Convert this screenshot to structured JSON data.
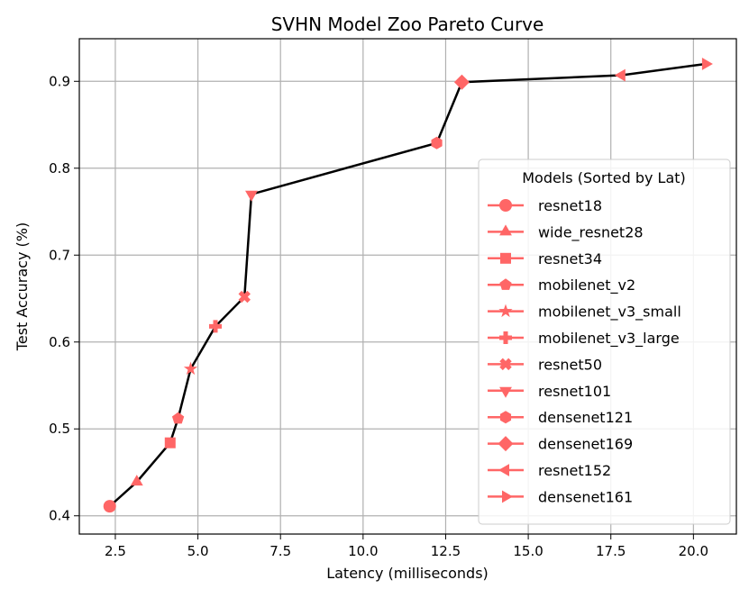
{
  "chart_data": {
    "type": "line",
    "title": "SVHN Model Zoo Pareto Curve",
    "xlabel": "Latency (milliseconds)",
    "ylabel": "Test Accuracy (%)",
    "xlim": [
      1.41,
      21.3
    ],
    "ylim": [
      0.379,
      0.949
    ],
    "xticks": [
      2.5,
      5.0,
      7.5,
      10.0,
      12.5,
      15.0,
      17.5,
      20.0
    ],
    "xtick_labels": [
      "2.5",
      "5.0",
      "7.5",
      "10.0",
      "12.5",
      "15.0",
      "17.5",
      "20.0"
    ],
    "yticks": [
      0.4,
      0.5,
      0.6,
      0.7,
      0.8,
      0.9
    ],
    "ytick_labels": [
      "0.4",
      "0.5",
      "0.6",
      "0.7",
      "0.8",
      "0.9"
    ],
    "grid": true,
    "line_color": "#000000",
    "marker_color": "#ff6666",
    "legend": {
      "title": "Models (Sorted by Lat)",
      "placement": "lower-right"
    },
    "points": [
      {
        "name": "resnet18",
        "marker": "circle",
        "x": 2.33,
        "y": 0.411
      },
      {
        "name": "wide_resnet28",
        "marker": "triangle-up",
        "x": 3.15,
        "y": 0.439
      },
      {
        "name": "resnet34",
        "marker": "square",
        "x": 4.16,
        "y": 0.484
      },
      {
        "name": "mobilenet_v2",
        "marker": "pentagon",
        "x": 4.4,
        "y": 0.512
      },
      {
        "name": "mobilenet_v3_small",
        "marker": "star",
        "x": 4.78,
        "y": 0.569
      },
      {
        "name": "mobilenet_v3_large",
        "marker": "plus",
        "x": 5.53,
        "y": 0.618
      },
      {
        "name": "resnet50",
        "marker": "x",
        "x": 6.41,
        "y": 0.652
      },
      {
        "name": "resnet101",
        "marker": "triangle-down",
        "x": 6.62,
        "y": 0.77
      },
      {
        "name": "densenet121",
        "marker": "hexagon",
        "x": 12.23,
        "y": 0.829
      },
      {
        "name": "densenet169",
        "marker": "diamond",
        "x": 12.99,
        "y": 0.899
      },
      {
        "name": "resnet152",
        "marker": "triangle-left",
        "x": 17.83,
        "y": 0.907
      },
      {
        "name": "densenet161",
        "marker": "triangle-right",
        "x": 20.37,
        "y": 0.92
      }
    ]
  }
}
